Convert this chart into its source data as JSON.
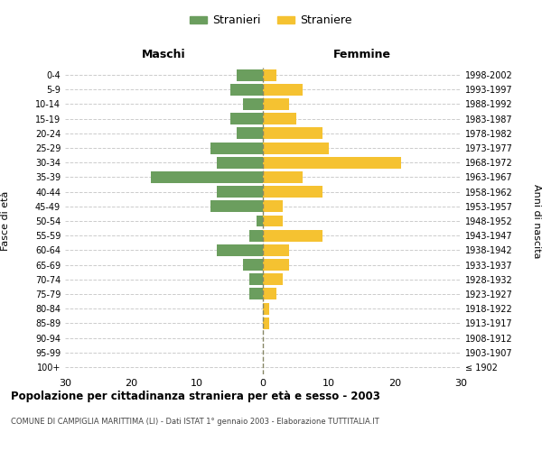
{
  "age_groups": [
    "100+",
    "95-99",
    "90-94",
    "85-89",
    "80-84",
    "75-79",
    "70-74",
    "65-69",
    "60-64",
    "55-59",
    "50-54",
    "45-49",
    "40-44",
    "35-39",
    "30-34",
    "25-29",
    "20-24",
    "15-19",
    "10-14",
    "5-9",
    "0-4"
  ],
  "birth_years": [
    "≤ 1902",
    "1903-1907",
    "1908-1912",
    "1913-1917",
    "1918-1922",
    "1923-1927",
    "1928-1932",
    "1933-1937",
    "1938-1942",
    "1943-1947",
    "1948-1952",
    "1953-1957",
    "1958-1962",
    "1963-1967",
    "1968-1972",
    "1973-1977",
    "1978-1982",
    "1983-1987",
    "1988-1992",
    "1993-1997",
    "1998-2002"
  ],
  "males": [
    0,
    0,
    0,
    0,
    0,
    2,
    2,
    3,
    7,
    2,
    1,
    8,
    7,
    17,
    7,
    8,
    4,
    5,
    3,
    5,
    4
  ],
  "females": [
    0,
    0,
    0,
    1,
    1,
    2,
    3,
    4,
    4,
    9,
    3,
    3,
    9,
    6,
    21,
    10,
    9,
    5,
    4,
    6,
    2
  ],
  "male_color": "#6b9e5e",
  "female_color": "#f5c231",
  "grid_color": "#cccccc",
  "dashed_line_color": "#888866",
  "title": "Popolazione per cittadinanza straniera per età e sesso - 2003",
  "subtitle": "COMUNE DI CAMPIGLIA MARITTIMA (LI) - Dati ISTAT 1° gennaio 2003 - Elaborazione TUTTITALIA.IT",
  "xlabel_left": "Maschi",
  "xlabel_right": "Femmine",
  "ylabel_left": "Fasce di età",
  "ylabel_right": "Anni di nascita",
  "legend_stranieri": "Stranieri",
  "legend_straniere": "Straniere",
  "xlim": 30,
  "bar_height": 0.8,
  "bg_color": "#ffffff"
}
